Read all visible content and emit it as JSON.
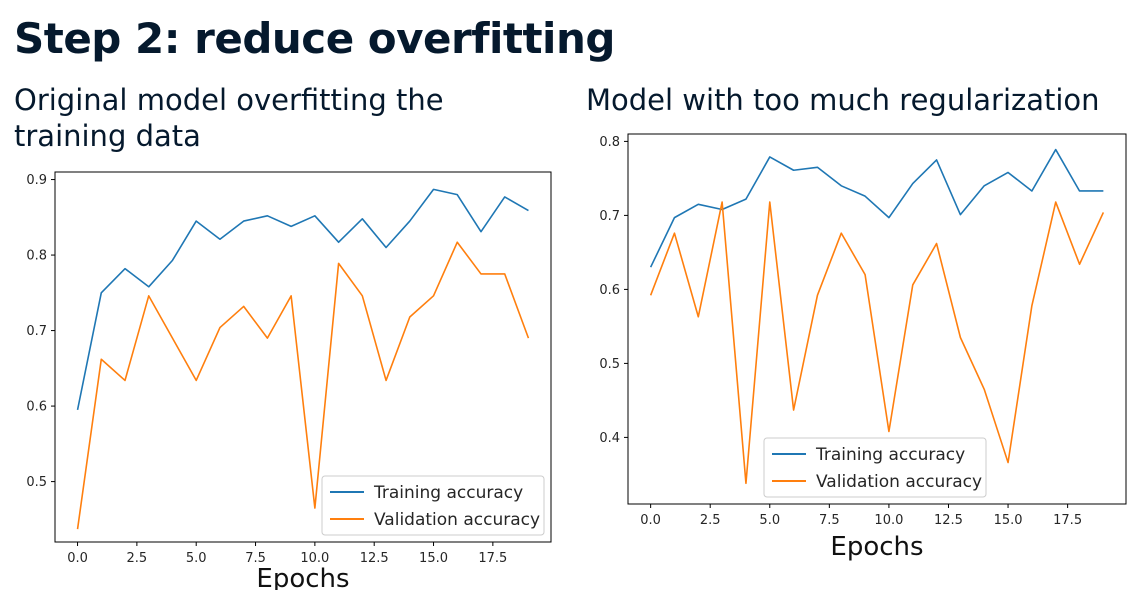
{
  "slide": {
    "title": "Step 2: reduce overfitting"
  },
  "panels": [
    {
      "title": "Original model overfitting the training data"
    },
    {
      "title": "Model with too much regularization"
    }
  ],
  "colors": {
    "training": "#1f77b4",
    "validation": "#ff7f0e",
    "text": "#05192d"
  },
  "chart_data": [
    {
      "type": "line",
      "title": "Original model overfitting the training data",
      "xlabel": "Epochs",
      "ylabel": "",
      "xlim": [
        -0.95,
        19.95
      ],
      "ylim": [
        0.42,
        0.91
      ],
      "xticks": [
        0,
        2.5,
        5,
        7.5,
        10,
        12.5,
        15,
        17.5
      ],
      "xtick_labels": [
        "0.0",
        "2.5",
        "5.0",
        "7.5",
        "10.0",
        "12.5",
        "15.0",
        "17.5"
      ],
      "yticks": [
        0.5,
        0.6,
        0.7,
        0.8,
        0.9
      ],
      "ytick_labels": [
        "0.5",
        "0.6",
        "0.7",
        "0.8",
        "0.9"
      ],
      "legend": "lower right",
      "x": [
        0,
        1,
        2,
        3,
        4,
        5,
        6,
        7,
        8,
        9,
        10,
        11,
        12,
        13,
        14,
        15,
        16,
        17,
        18,
        19
      ],
      "series": [
        {
          "name": "Training accuracy",
          "values": [
            0.595,
            0.75,
            0.782,
            0.758,
            0.793,
            0.845,
            0.821,
            0.845,
            0.852,
            0.838,
            0.852,
            0.817,
            0.848,
            0.81,
            0.845,
            0.887,
            0.88,
            0.831,
            0.877,
            0.859
          ]
        },
        {
          "name": "Validation accuracy",
          "values": [
            0.437,
            0.662,
            0.634,
            0.746,
            0.69,
            0.634,
            0.704,
            0.732,
            0.69,
            0.746,
            0.465,
            0.789,
            0.746,
            0.634,
            0.718,
            0.746,
            0.817,
            0.775,
            0.775,
            0.69
          ]
        }
      ]
    },
    {
      "type": "line",
      "title": "Model with too much regularization",
      "xlabel": "Epochs",
      "ylabel": "",
      "xlim": [
        -0.95,
        19.95
      ],
      "ylim": [
        0.31,
        0.81
      ],
      "xticks": [
        0,
        2.5,
        5,
        7.5,
        10,
        12.5,
        15,
        17.5
      ],
      "xtick_labels": [
        "0.0",
        "2.5",
        "5.0",
        "7.5",
        "10.0",
        "12.5",
        "15.0",
        "17.5"
      ],
      "yticks": [
        0.4,
        0.5,
        0.6,
        0.7,
        0.8
      ],
      "ytick_labels": [
        "0.4",
        "0.5",
        "0.6",
        "0.7",
        "0.8"
      ],
      "legend": "lower center",
      "x": [
        0,
        1,
        2,
        3,
        4,
        5,
        6,
        7,
        8,
        9,
        10,
        11,
        12,
        13,
        14,
        15,
        16,
        17,
        18,
        19
      ],
      "series": [
        {
          "name": "Training accuracy",
          "values": [
            0.63,
            0.697,
            0.715,
            0.708,
            0.722,
            0.779,
            0.761,
            0.765,
            0.74,
            0.726,
            0.697,
            0.743,
            0.775,
            0.701,
            0.74,
            0.758,
            0.733,
            0.789,
            0.733,
            0.733
          ]
        },
        {
          "name": "Validation accuracy",
          "values": [
            0.592,
            0.676,
            0.563,
            0.718,
            0.338,
            0.718,
            0.437,
            0.592,
            0.676,
            0.62,
            0.408,
            0.606,
            0.662,
            0.535,
            0.465,
            0.366,
            0.578,
            0.718,
            0.634,
            0.704
          ]
        }
      ]
    }
  ]
}
